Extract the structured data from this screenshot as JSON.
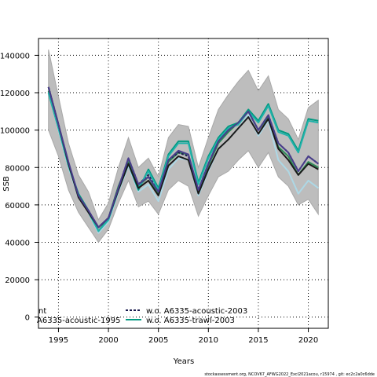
{
  "chart_data": {
    "type": "line",
    "xlabel": "Years",
    "ylabel": "SSB",
    "xlim": [
      1993,
      2022
    ],
    "ylim": [
      -6000,
      149000
    ],
    "x_ticks": [
      1995,
      2000,
      2005,
      2010,
      2015,
      2020
    ],
    "y_ticks": [
      0,
      20000,
      40000,
      60000,
      80000,
      100000,
      120000,
      140000
    ],
    "grid": true,
    "x": [
      1994,
      1995,
      1996,
      1997,
      1998,
      1999,
      2000,
      2001,
      2002,
      2003,
      2004,
      2005,
      2006,
      2007,
      2008,
      2009,
      2010,
      2011,
      2012,
      2013,
      2014,
      2015,
      2016,
      2017,
      2018,
      2019,
      2020,
      2021
    ],
    "band": {
      "upper": [
        143000,
        118000,
        93000,
        76000,
        67000,
        52000,
        61000,
        80000,
        96000,
        80000,
        85000,
        75000,
        96000,
        103000,
        102000,
        80000,
        96000,
        111000,
        119000,
        126000,
        132000,
        121000,
        129000,
        111000,
        106000,
        95000,
        112000,
        116000
      ],
      "lower": [
        100000,
        86000,
        68000,
        56000,
        48000,
        40000,
        47000,
        61000,
        73000,
        59000,
        62000,
        55000,
        68000,
        73000,
        70000,
        54000,
        65000,
        75000,
        78000,
        84000,
        89000,
        80000,
        88000,
        75000,
        70000,
        60000,
        63000,
        55000
      ]
    },
    "series": [
      {
        "name": "",
        "color": "#add8e6",
        "values": [
          121000,
          100000,
          80000,
          64000,
          56000,
          45000,
          51000,
          67000,
          81000,
          67000,
          71000,
          62000,
          79000,
          85000,
          84000,
          65000,
          78000,
          90000,
          95000,
          101000,
          108000,
          97000,
          105000,
          84000,
          78000,
          66000,
          73000,
          69000
        ]
      },
      {
        "name": "",
        "color": "#2e8b57",
        "values": [
          121000,
          102000,
          82000,
          65000,
          57000,
          46000,
          53000,
          70000,
          83000,
          70000,
          75000,
          66000,
          83000,
          88000,
          87000,
          67000,
          81000,
          93000,
          99000,
          104000,
          110000,
          100000,
          107000,
          91000,
          86000,
          76000,
          83000,
          80000
        ]
      },
      {
        "name": "w.o. A6335-acoustic-2003",
        "color": "#1a1a4d",
        "dash": "3,2",
        "values": [
          123000,
          103000,
          82000,
          65000,
          57000,
          48000,
          53000,
          69000,
          85000,
          71000,
          76000,
          68000,
          84000,
          88000,
          86000,
          68000,
          82000,
          94000,
          100000,
          104000,
          110000,
          100000,
          108000,
          93000,
          88000,
          78000,
          86000,
          82000
        ]
      },
      {
        "name": "w.o. A6335-trawl-2003",
        "color": "#009980",
        "values": [
          120000,
          101000,
          81000,
          66000,
          57000,
          46000,
          52000,
          68000,
          82000,
          68000,
          79000,
          69000,
          87000,
          94000,
          94000,
          72000,
          86000,
          96000,
          102000,
          104000,
          111000,
          105000,
          114000,
          100000,
          98000,
          89000,
          106000,
          105000
        ]
      },
      {
        "name": "",
        "color": "#20b2aa",
        "values": [
          120000,
          101000,
          81000,
          65000,
          56000,
          46000,
          52000,
          68000,
          82000,
          69000,
          78000,
          68000,
          86000,
          93000,
          93000,
          71000,
          85000,
          95000,
          101000,
          103000,
          110000,
          104000,
          113000,
          99000,
          97000,
          88000,
          105000,
          104000
        ]
      },
      {
        "name": "",
        "color": "#1a1a1a",
        "values": [
          123000,
          103000,
          82000,
          64000,
          56000,
          48000,
          53000,
          68000,
          82000,
          69000,
          73000,
          65000,
          81000,
          86000,
          84000,
          66000,
          79000,
          90000,
          95000,
          101000,
          107000,
          98000,
          106000,
          90000,
          84000,
          76000,
          82000,
          79000
        ]
      },
      {
        "name": "",
        "color": "#483d8b",
        "values": [
          123000,
          103000,
          83000,
          65000,
          57000,
          48000,
          53000,
          69000,
          85000,
          71000,
          75000,
          67000,
          84000,
          89000,
          87000,
          68000,
          82000,
          94000,
          100000,
          104000,
          110000,
          100000,
          108000,
          93000,
          88000,
          78000,
          86000,
          82000
        ]
      }
    ],
    "legend": {
      "placement": "bottom-left",
      "entries_left": [
        "nt",
        "A6335-acoustic-1995"
      ],
      "entries_right": [
        {
          "label": "w.o. A6335-acoustic-2003",
          "color": "#1a1a4d",
          "dash": "3,2"
        },
        {
          "label": "w.o. A6335-trawl-2003",
          "color": "#009980",
          "dash": ""
        }
      ]
    },
    "footer": "stockassessment.org, NCOV67_AFWG2022_Excl2021acou, r15974 , git: ec2c2a0c6dde"
  }
}
